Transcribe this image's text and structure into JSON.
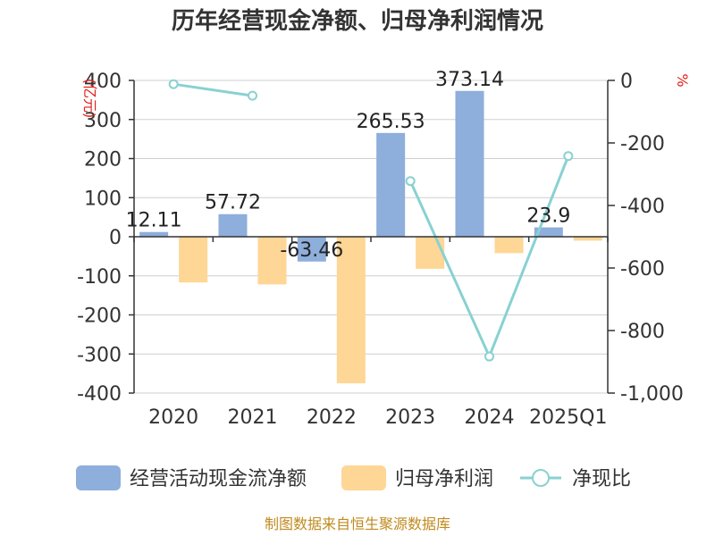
{
  "chart_data": {
    "type": "bar",
    "title": "历年经营现金净额、归母净利润情况",
    "categories": [
      "2020",
      "2021",
      "2022",
      "2023",
      "2024",
      "2025Q1"
    ],
    "left_axis": {
      "unit_label": "(亿元)",
      "ylim": [
        -400,
        400
      ],
      "ticks": [
        400,
        300,
        200,
        100,
        0,
        -100,
        -200,
        -300,
        -400
      ]
    },
    "right_axis": {
      "unit_label": "%",
      "ylim": [
        -1000,
        0
      ],
      "ticks": [
        0,
        -200,
        -400,
        -600,
        -800,
        -1000
      ],
      "tick_labels": [
        "0",
        "-200",
        "-400",
        "-600",
        "-800",
        "-1,000"
      ]
    },
    "series": [
      {
        "name": "经营活动现金流净额",
        "type": "bar",
        "axis": "left",
        "color": "#8eaedb",
        "values": [
          12.11,
          57.72,
          -63.46,
          265.53,
          373.14,
          23.9
        ],
        "labels": [
          "12.11",
          "57.72",
          "-63.46",
          "265.53",
          "373.14",
          "23.9"
        ]
      },
      {
        "name": "归母净利润",
        "type": "bar",
        "axis": "left",
        "color": "#fed695",
        "values": [
          -117,
          -122,
          -375,
          -82,
          -42,
          -10
        ]
      },
      {
        "name": "净现比",
        "type": "line",
        "axis": "right",
        "color": "#89d1d2",
        "values": [
          -12,
          -49,
          null,
          -322,
          -883,
          -242
        ]
      }
    ],
    "grid": true,
    "legend_position": "bottom"
  },
  "source_text": "制图数据来自恒生聚源数据库"
}
